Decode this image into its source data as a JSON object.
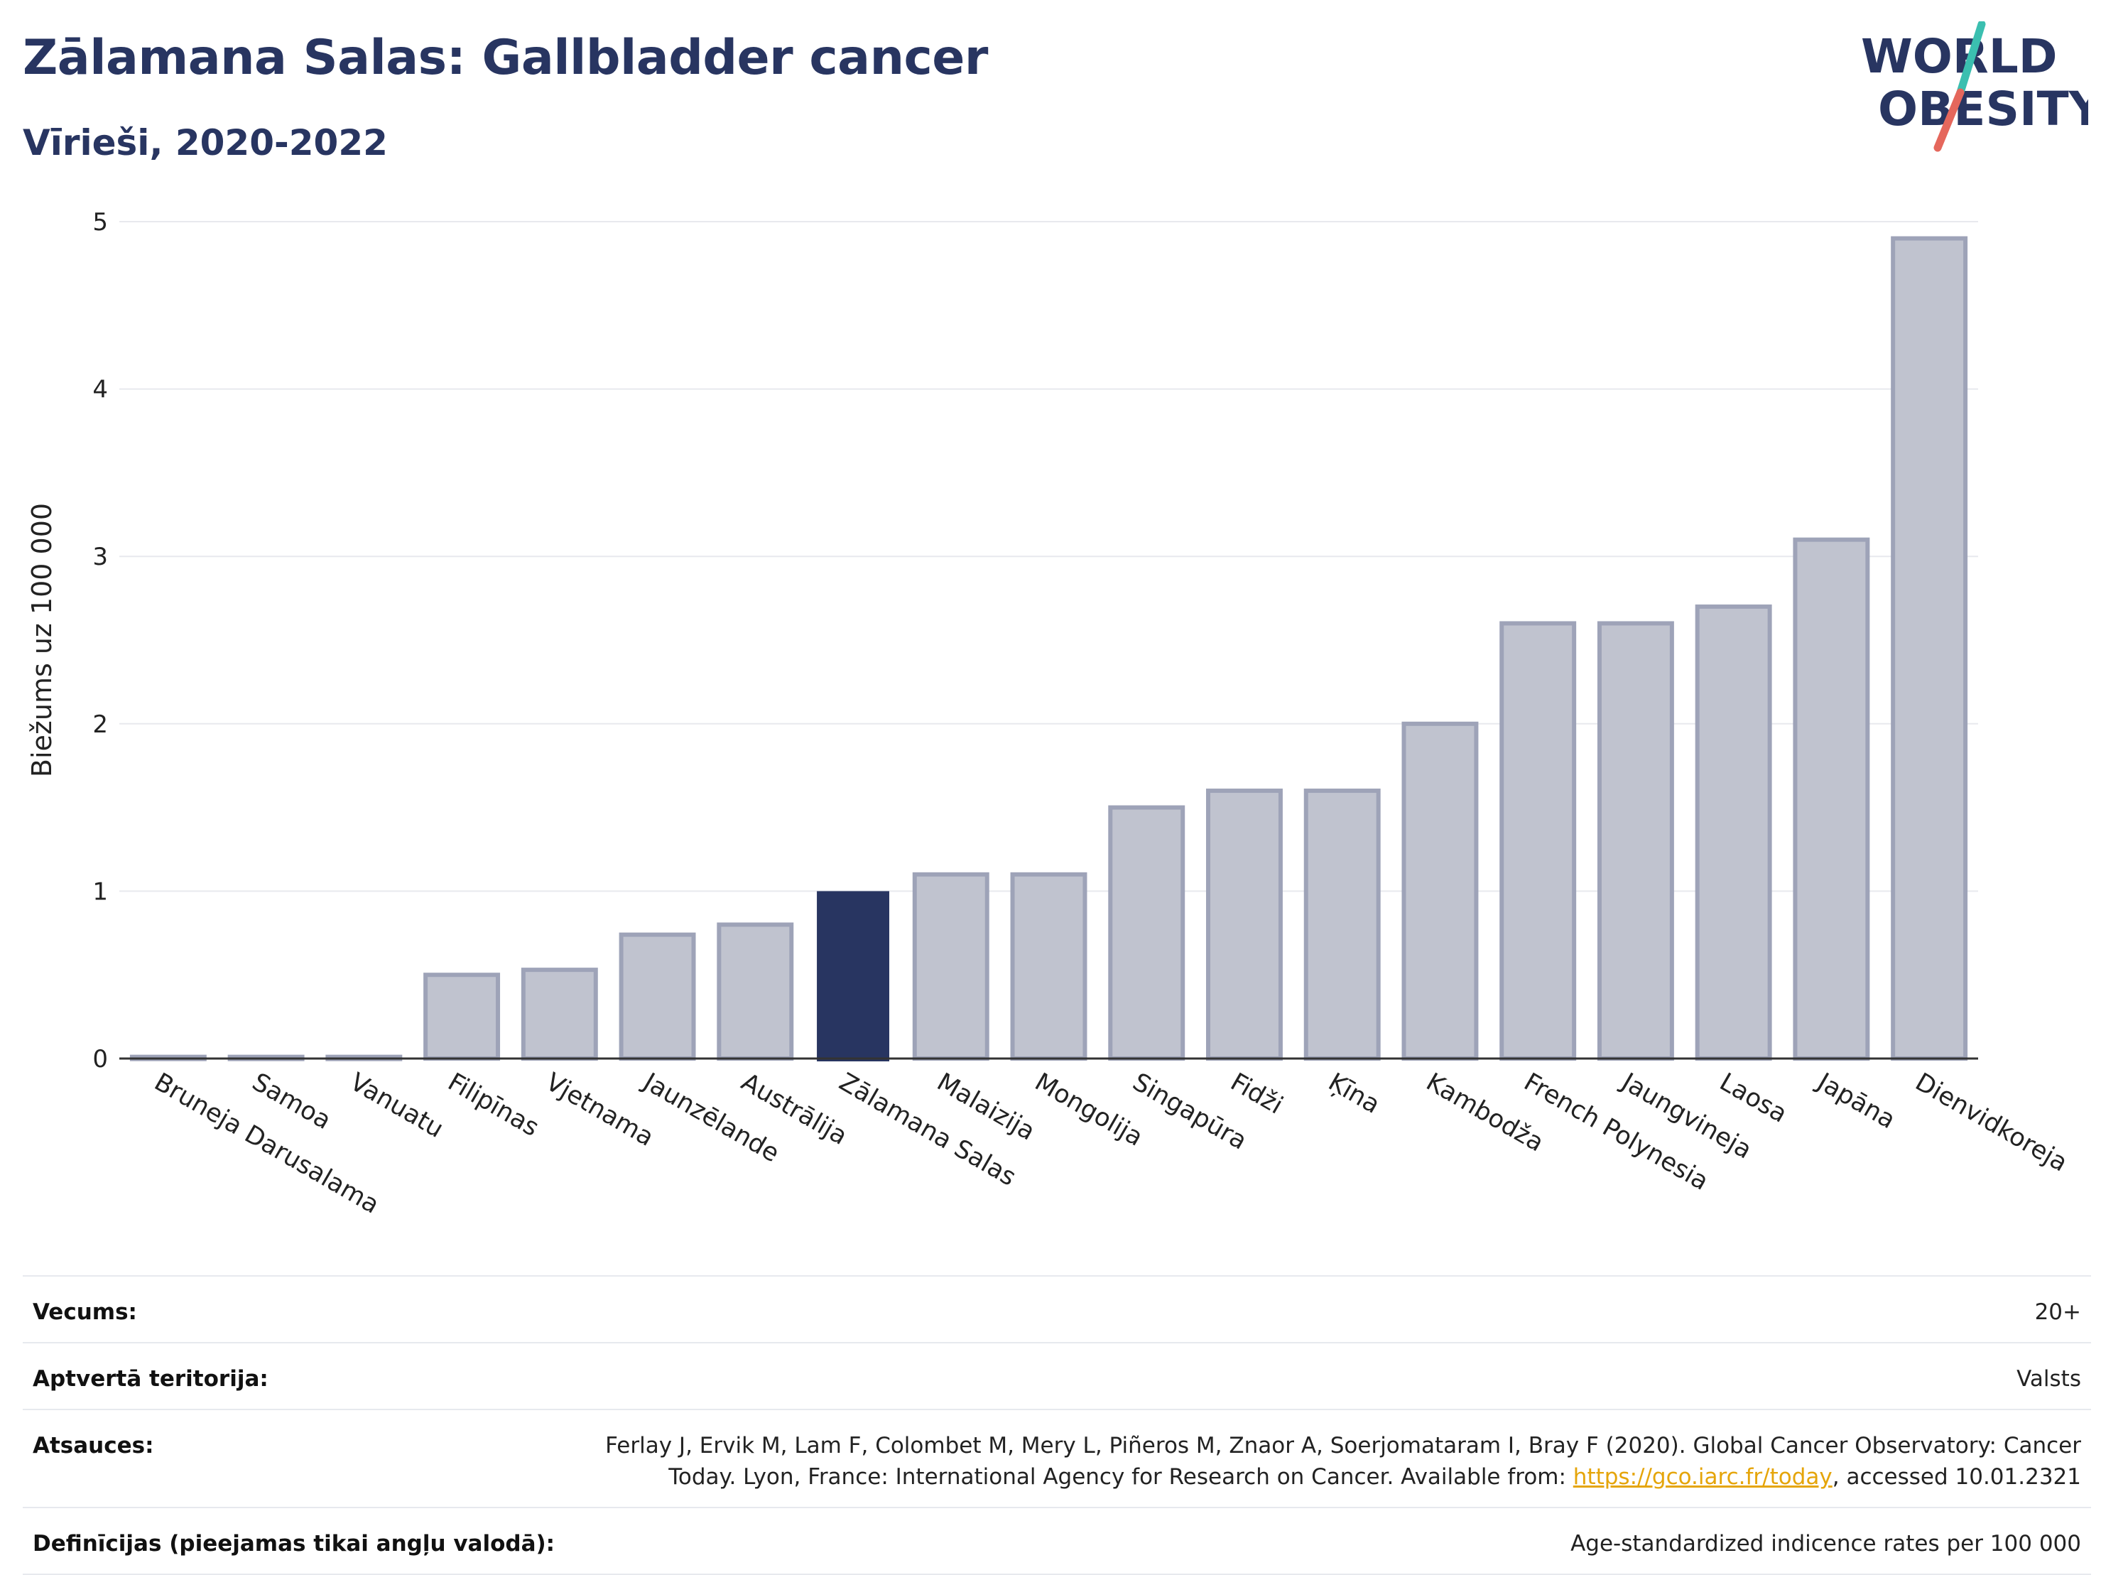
{
  "header": {
    "title": "Zālamana Salas: Gallbladder cancer",
    "subtitle": "Vīrieši, 2020-2022"
  },
  "logo": {
    "line1": "WORLD",
    "line2": "OBESITY",
    "accent_teal": "#3bbfb0",
    "accent_red": "#e5675c",
    "text_color": "#283561"
  },
  "colors": {
    "bar": "#c0c3cf",
    "bar_stroke": "#9ea3b8",
    "highlight": "#283561"
  },
  "chart_data": {
    "type": "bar",
    "title": "Zālamana Salas: Gallbladder cancer",
    "subtitle": "Vīrieši, 2020-2022",
    "xlabel": "",
    "ylabel": "Biežums uz 100 000",
    "ylim": [
      0,
      5
    ],
    "yticks": [
      0,
      1,
      2,
      3,
      4,
      5
    ],
    "grid": true,
    "highlight": "Zālamana Salas",
    "categories": [
      "Bruneja Darusalama",
      "Samoa",
      "Vanuatu",
      "Filipīnas",
      "Vjetnama",
      "Jaunzēlande",
      "Austrālija",
      "Zālamana Salas",
      "Malaizija",
      "Mongolija",
      "Singapūra",
      "Fidži",
      "Ķīna",
      "Kambodža",
      "French Polynesia",
      "Jaungvineja",
      "Laosa",
      "Japāna",
      "Dienvidkoreja"
    ],
    "values": [
      0.01,
      0.01,
      0.01,
      0.5,
      0.53,
      0.74,
      0.8,
      1.0,
      1.1,
      1.1,
      1.5,
      1.6,
      1.6,
      2.0,
      2.6,
      2.6,
      2.7,
      3.1,
      4.9
    ]
  },
  "meta": {
    "rows": [
      {
        "label": "Vecums:",
        "value": "20+"
      },
      {
        "label": "Aptvertā teritorija:",
        "value": "Valsts"
      },
      {
        "label": "Atsauces:",
        "value_pre": "Ferlay J, Ervik M, Lam F, Colombet M, Mery L, Piñeros M, Znaor A, Soerjomataram I, Bray F (2020). Global Cancer Observatory: Cancer Today. Lyon, France: International Agency for Research on Cancer. Available from: ",
        "link": "https://gco.iarc.fr/today",
        "value_post": ", accessed 10.01.2321"
      },
      {
        "label": "Definīcijas (pieejamas tikai angļu valodā):",
        "value": "Age-standardized indicence rates per 100 000"
      }
    ]
  }
}
